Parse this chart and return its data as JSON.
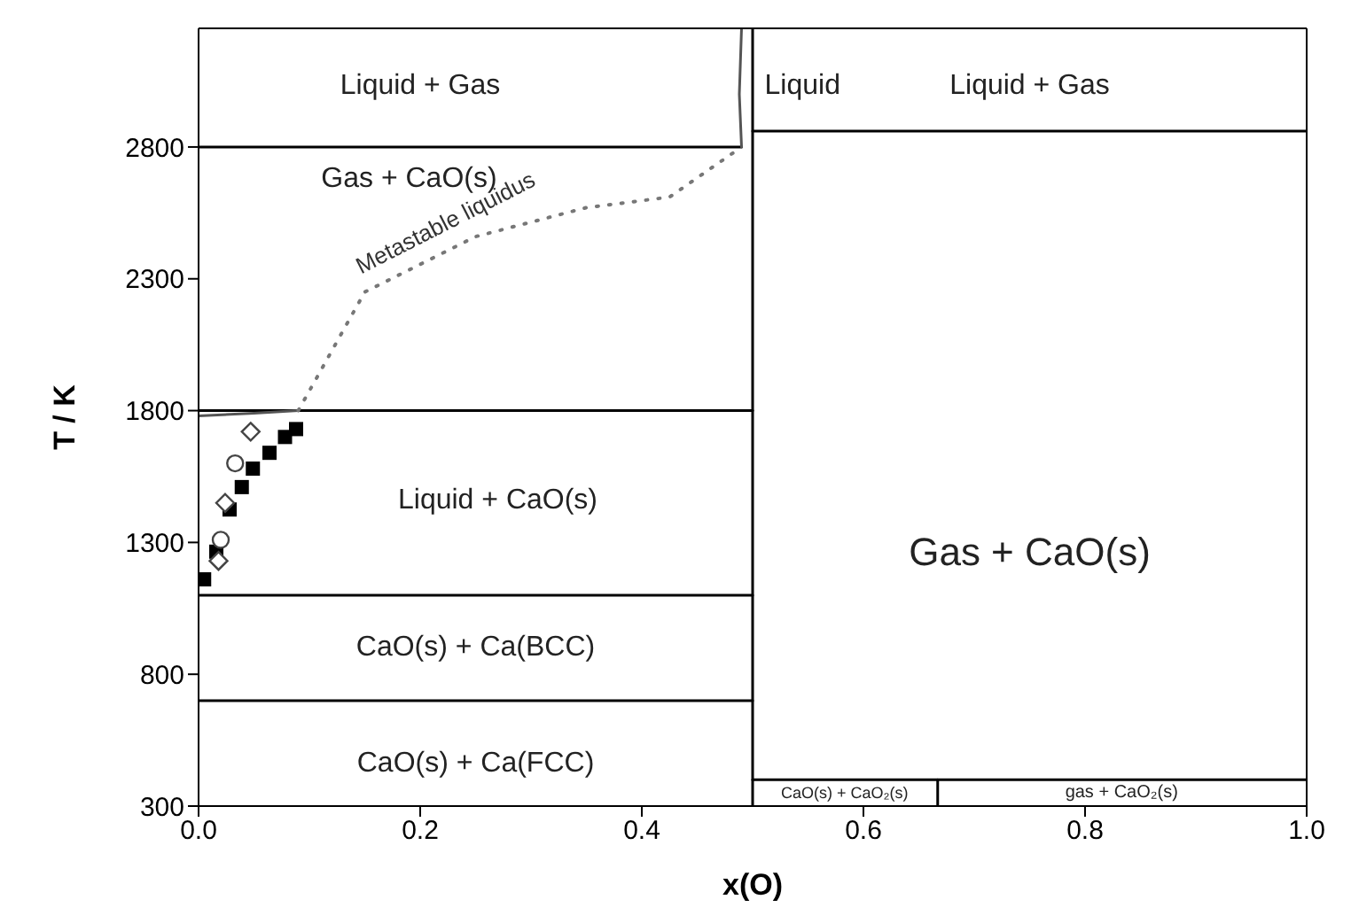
{
  "chart_data": {
    "type": "line",
    "xlabel": "x(O)",
    "ylabel": "T / K",
    "xlim": [
      0,
      1
    ],
    "ylim": [
      300,
      3250
    ],
    "xticks": [
      {
        "value": 0,
        "label": "0.0"
      },
      {
        "value": 0.2,
        "label": "0.2"
      },
      {
        "value": 0.4,
        "label": "0.4"
      },
      {
        "value": 0.6,
        "label": "0.6"
      },
      {
        "value": 0.8,
        "label": "0.8"
      },
      {
        "value": 1,
        "label": "1.0"
      }
    ],
    "yticks": [
      300,
      800,
      1300,
      1800,
      2300,
      2800
    ],
    "grid": false,
    "legend": false,
    "marker": "none",
    "series": [
      {
        "color": "#000000",
        "x": [
          0,
          0.49
        ],
        "values": [
          2800,
          2800
        ]
      },
      {
        "color": "#000000",
        "x": [
          0.5,
          1
        ],
        "values": [
          2860,
          2860
        ]
      },
      {
        "color": "#000000",
        "x": [
          0,
          0.5
        ],
        "values": [
          1800,
          1800
        ]
      },
      {
        "color": "#000000",
        "x": [
          0,
          0.5
        ],
        "values": [
          1100,
          1100
        ]
      },
      {
        "color": "#000000",
        "x": [
          0,
          0.5
        ],
        "values": [
          700,
          700
        ]
      },
      {
        "color": "#000000",
        "x": [
          0.5,
          1
        ],
        "values": [
          400,
          400
        ]
      },
      {
        "color": "#000000",
        "x": [
          0.667,
          0.667
        ],
        "values": [
          300,
          400
        ]
      },
      {
        "color": "#000000",
        "x": [
          0.5,
          0.5
        ],
        "values": [
          300,
          3250
        ]
      },
      {
        "color": "#555555",
        "x": [
          0.49,
          0.488,
          0.49
        ],
        "values": [
          2800,
          3000,
          3250
        ]
      },
      {
        "color": "#555555",
        "x": [
          0,
          0.05,
          0.09
        ],
        "values": [
          1780,
          1790,
          1800
        ]
      },
      {
        "name": "Metastable liquidus",
        "color": "#777777",
        "line_style": "dotted",
        "x": [
          0.09,
          0.15,
          0.25,
          0.35,
          0.425,
          0.49
        ],
        "values": [
          1800,
          2250,
          2460,
          2570,
          2610,
          2800
        ]
      },
      {
        "type": "scatter",
        "marker": "square",
        "color": "#000000",
        "x": [
          0.005,
          0.016,
          0.028,
          0.039,
          0.049,
          0.064,
          0.078,
          0.088
        ],
        "values": [
          1160,
          1265,
          1425,
          1510,
          1580,
          1640,
          1700,
          1730
        ]
      },
      {
        "type": "scatter",
        "marker": "circle",
        "color": "#444444",
        "x": [
          0.02,
          0.033
        ],
        "values": [
          1310,
          1600
        ]
      },
      {
        "type": "scatter",
        "marker": "diamond",
        "color": "#444444",
        "x": [
          0.018,
          0.024,
          0.047
        ],
        "values": [
          1230,
          1450,
          1720
        ]
      }
    ],
    "annotations": [
      "Liquid + Gas",
      "Liquid",
      "Liquid + Gas",
      "Gas + CaO(s)",
      "Liquid + CaO(s)",
      "CaO(s) + Ca(BCC)",
      "CaO(s) + Ca(FCC)",
      "Gas + CaO(s)",
      "CaO(s) + CaO₂(s)",
      "gas + CaO₂(s)"
    ]
  }
}
